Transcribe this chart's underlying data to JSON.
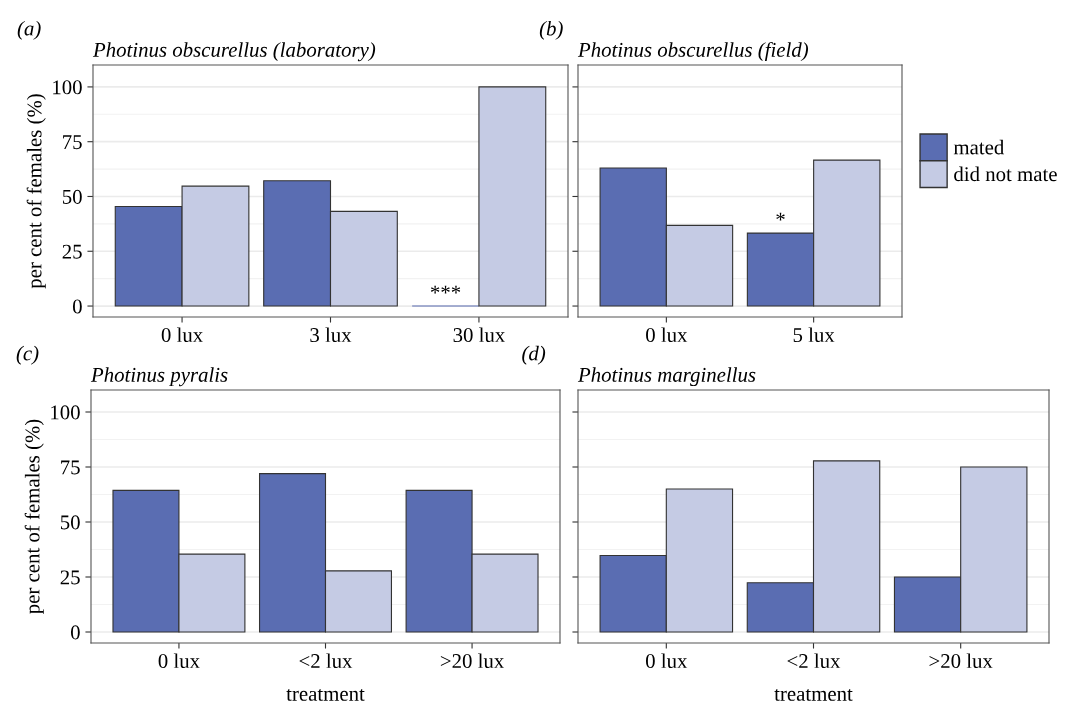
{
  "chart_data": [
    {
      "type": "bar",
      "title": "Photinus obscurellus (laboratory)",
      "ylabel": "per cent of females (%)",
      "annotations": [
        "(a)",
        {
          "text": "***",
          "x": "30 lux",
          "y": 0
        }
      ],
      "categories": [
        "0 lux",
        "3 lux",
        "30 lux"
      ],
      "series": [
        {
          "color": "#5a6db2",
          "values": [
            45.4,
            57.2,
            0
          ]
        },
        {
          "color": "#c5cbe4",
          "values": [
            54.7,
            43.2,
            100
          ]
        }
      ],
      "ylim": [
        -5,
        110
      ],
      "yticks": [
        0,
        25,
        50,
        75,
        100
      ],
      "grid": "y",
      "legend": false
    },
    {
      "type": "bar",
      "title": "Photinus obscurellus (field)",
      "annotations": [
        "(b)",
        {
          "text": "*",
          "x": "5 lux",
          "y": 33.3
        }
      ],
      "categories": [
        "0 lux",
        "5 lux"
      ],
      "series": [
        {
          "name": "mated",
          "color": "#5a6db2",
          "values": [
            63.0,
            33.3
          ]
        },
        {
          "name": "did not mate",
          "color": "#c5cbe4",
          "values": [
            36.8,
            66.6
          ]
        }
      ],
      "ylim": [
        -5,
        110
      ],
      "yticks": [
        0,
        25,
        50,
        75,
        100
      ],
      "tick_labels": "x",
      "grid": "y",
      "legend": "right"
    },
    {
      "type": "bar",
      "title": "Photinus pyralis",
      "xlabel": "treatment",
      "ylabel": "per cent of females (%)",
      "annotations": [
        "(c)"
      ],
      "categories": [
        "0 lux",
        "<2 lux",
        ">20 lux"
      ],
      "series": [
        {
          "color": "#5a6db2",
          "values": [
            64.4,
            72.0,
            64.4
          ]
        },
        {
          "color": "#c5cbe4",
          "values": [
            35.4,
            27.8,
            35.4
          ]
        }
      ],
      "ylim": [
        -5,
        110
      ],
      "yticks": [
        0,
        25,
        50,
        75,
        100
      ],
      "grid": "y",
      "legend": false
    },
    {
      "type": "bar",
      "title": "Photinus marginellus",
      "xlabel": "treatment",
      "annotations": [
        "(d)"
      ],
      "categories": [
        "0 lux",
        "<2 lux",
        ">20 lux"
      ],
      "series": [
        {
          "color": "#5a6db2",
          "values": [
            34.8,
            22.4,
            25.0
          ]
        },
        {
          "color": "#c5cbe4",
          "values": [
            65.0,
            77.8,
            75.0
          ]
        }
      ],
      "ylim": [
        -5,
        110
      ],
      "yticks": [
        0,
        25,
        50,
        75,
        100
      ],
      "tick_labels": "x",
      "grid": "y",
      "legend": false
    }
  ]
}
